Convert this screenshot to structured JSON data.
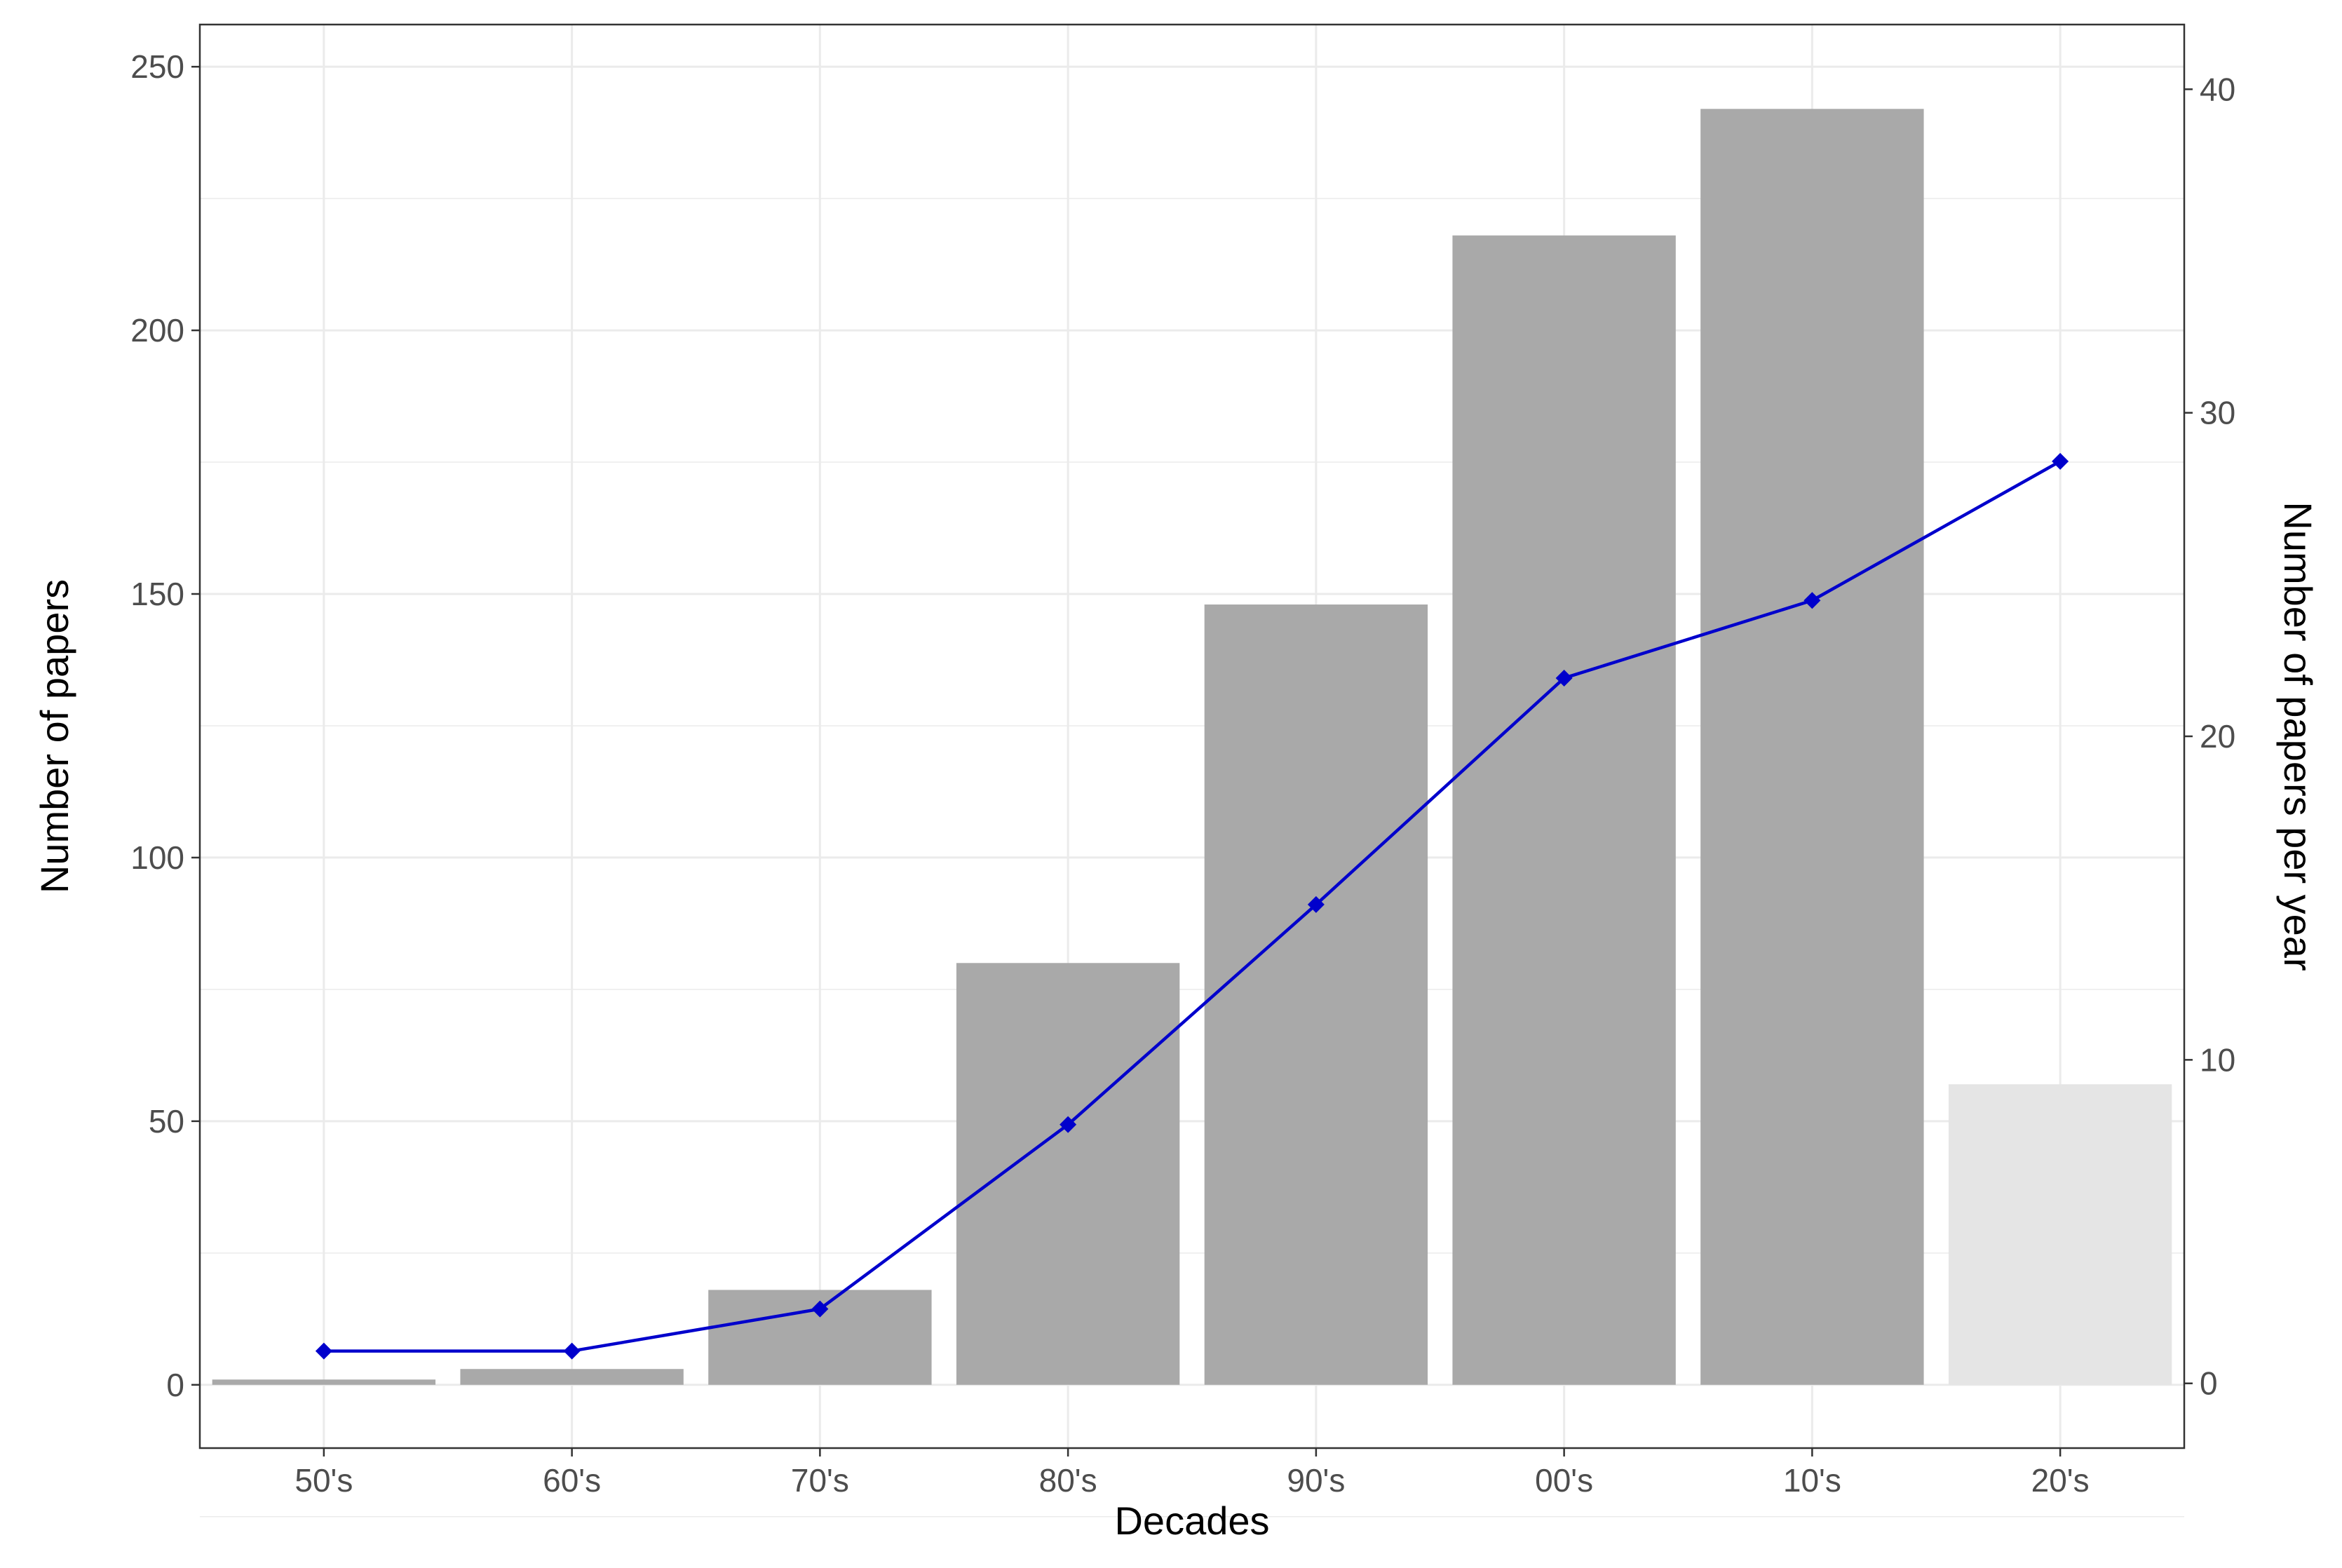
{
  "chart_data": {
    "type": "bar",
    "categories": [
      "50's",
      "60's",
      "70's",
      "80's",
      "90's",
      "00's",
      "10's",
      "20's"
    ],
    "series": [
      {
        "kind": "bar",
        "axis": "left",
        "values": [
          1,
          3,
          18,
          80,
          148,
          218,
          242,
          57
        ]
      },
      {
        "kind": "line",
        "axis": "right",
        "values": [
          1.0,
          1.0,
          2.3,
          8.0,
          14.8,
          21.8,
          24.2,
          28.5
        ]
      }
    ],
    "xlabel": "Decades",
    "ylabel": "Number of papers",
    "y2label": "Number of papers per year",
    "ylim": [
      -12,
      258
    ],
    "y2lim": [
      -2,
      42
    ],
    "yticks": [
      0,
      50,
      100,
      150,
      200,
      250
    ],
    "y2ticks": [
      0,
      10,
      20,
      30,
      40
    ],
    "grid": true,
    "legend": "none",
    "colors": {
      "bar": "#a9a9a9",
      "bar_last": "#e5e5e5",
      "line": "#0000cc",
      "grid": "#ebebeb",
      "axis": "#333333"
    }
  }
}
